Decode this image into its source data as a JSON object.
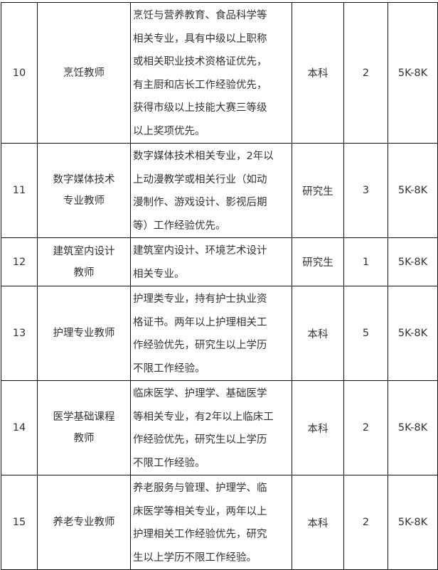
{
  "rows": [
    {
      "no": "10",
      "position": [
        "烹饪教师"
      ],
      "requirements": [
        "烹饪与营养教育、食品科学等",
        "相关专业，具有中级以上职称",
        "或相关职业技术资格证优先，",
        "有主厨和店长工作经验优先，",
        "获得市级以上技能大赛三等级",
        "以上奖项优先。"
      ],
      "education": "本科",
      "count": "2",
      "salary": "5K-8K"
    },
    {
      "no": "11",
      "position": [
        "数字媒体技术",
        "专业教师"
      ],
      "requirements": [
        "数字媒体技术相关专业，2年以",
        "上动漫教学或相关行业（如动",
        "漫制作、游戏设计、影视后期",
        "等）工作经验优先。"
      ],
      "education": "研究生",
      "count": "3",
      "salary": "5K-8K"
    },
    {
      "no": "12",
      "position": [
        "建筑室内设计",
        "教师"
      ],
      "requirements": [
        "建筑室内设计、环境艺术设计",
        "相关专业。"
      ],
      "education": "研究生",
      "count": "1",
      "salary": "5K-8K"
    },
    {
      "no": "13",
      "position": [
        "护理专业教师"
      ],
      "requirements": [
        "护理类专业，持有护士执业资",
        "格证书。两年以上护理相关工",
        "作经验优先，研究生以上学历",
        "不限工作经验。"
      ],
      "education": "本科",
      "count": "5",
      "salary": "5K-8K"
    },
    {
      "no": "14",
      "position": [
        "医学基础课程",
        "教师"
      ],
      "requirements": [
        "临床医学、护理学、基础医学",
        "等相关专业，有2年以上临床工",
        "作经验优先，研究生以上学历",
        "不限工作经验。"
      ],
      "education": "本科",
      "count": "2",
      "salary": "5K-8K"
    },
    {
      "no": "15",
      "position": [
        "养老专业教师"
      ],
      "requirements": [
        "养老服务与管理、护理学、临",
        "床医学等相关专业，两年以上",
        "护理相关工作经验优先，研究",
        "生以上学历不限工作经验。"
      ],
      "education": "本科",
      "count": "2",
      "salary": "5K-8K"
    }
  ]
}
